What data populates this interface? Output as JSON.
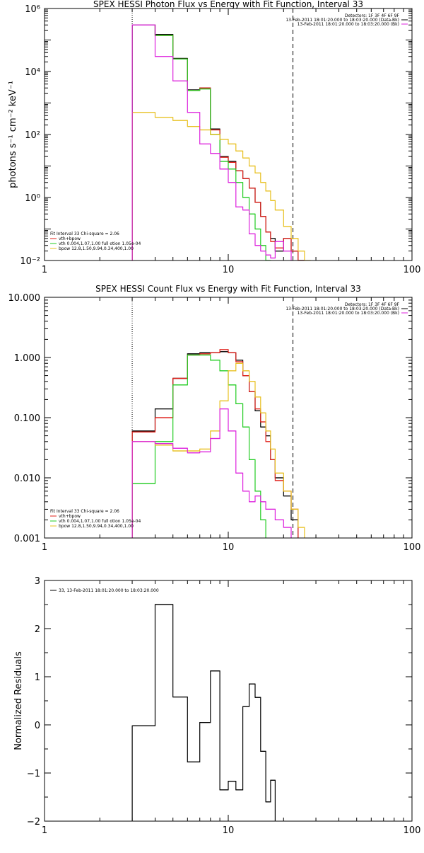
{
  "colors": {
    "total": "#000000",
    "model": "#e0201a",
    "vth": "#22cc22",
    "bpow": "#e8c020",
    "bk": "#dd22dd"
  },
  "chart_data": [
    {
      "type": "line",
      "title": "SPEX HESSI Photon Flux vs Energy with Fit Function, Interval 33",
      "ylabel": "photons s⁻¹ cm⁻² keV⁻¹",
      "xlabel": "",
      "x_scale": "log",
      "y_scale": "log",
      "xlim": [
        1,
        100
      ],
      "ylim": [
        0.01,
        1000000
      ],
      "xticks": [
        "1",
        "10",
        "100"
      ],
      "yticks": [
        {
          "value": 1000000,
          "label": "10⁶"
        },
        {
          "value": 10000,
          "label": "10⁴"
        },
        {
          "value": 100,
          "label": "10²"
        },
        {
          "value": 1,
          "label": "10⁰"
        },
        {
          "value": 0.01,
          "label": "10⁻²"
        }
      ],
      "vlines": [
        {
          "x": 3,
          "style": "dotted"
        },
        {
          "x": 22.5,
          "style": "dashed"
        }
      ],
      "info_lines": [
        "Detectors: 1F 3F 4F 6F 9F",
        "13-Feb-2011 18:01:20.000 to 18:03:20.000 (Data-Bk)",
        "13-Feb-2011 18:01:20.000 to 18:03:20.000 (Bk)"
      ],
      "legend_lines": [
        "Fit Interval 33   Chi-square = 2.06",
        "vth+bpow",
        "vth 0.004,1.07,1.00  full otion 1.05e-04",
        "bpow 12.8,1.50,9.94,0.34,400,1.00"
      ],
      "edges": [
        3,
        4,
        5,
        6,
        7,
        8,
        9,
        10,
        11,
        12,
        13,
        14,
        15,
        16,
        17,
        18,
        20,
        22,
        24,
        26,
        28,
        30
      ],
      "series": [
        {
          "name": "total",
          "color_key": "total",
          "values": [
            300000,
            150000,
            26000,
            2600,
            3000,
            150,
            20,
            14,
            7,
            4,
            2,
            0.7,
            0.25,
            0.08,
            0.05,
            0.02,
            0.05,
            0.02,
            0.01,
            null,
            null
          ]
        },
        {
          "name": "vth+bpow",
          "color_key": "model",
          "values": [
            300000,
            140000,
            25000,
            2500,
            3000,
            140,
            19,
            13,
            7,
            4,
            2,
            0.7,
            0.25,
            0.08,
            0.04,
            0.025,
            0.05,
            0.02,
            0.01,
            null,
            null
          ]
        },
        {
          "name": "vth",
          "color_key": "vth",
          "values": [
            300000,
            140000,
            25000,
            2500,
            2800,
            100,
            14,
            8,
            3,
            1,
            0.3,
            0.1,
            0.03,
            0.01,
            null,
            null,
            null,
            null,
            null,
            null,
            null
          ]
        },
        {
          "name": "bpow",
          "color_key": "bpow",
          "values": [
            500,
            350,
            280,
            180,
            140,
            100,
            70,
            50,
            30,
            18,
            10,
            6,
            3,
            1.6,
            0.8,
            0.4,
            0.12,
            0.05,
            0.02,
            0.01,
            null
          ]
        },
        {
          "name": "bk",
          "color_key": "bk",
          "values": [
            300000,
            30000,
            5000,
            500,
            50,
            25,
            8,
            3,
            0.5,
            0.4,
            0.07,
            0.03,
            0.02,
            0.015,
            0.012,
            0.04,
            0.02,
            null,
            null,
            null,
            null
          ]
        }
      ]
    },
    {
      "type": "line",
      "title": "SPEX HESSI Count Flux vs Energy with Fit Function, Interval 33",
      "ylabel": "",
      "xlabel": "",
      "x_scale": "log",
      "y_scale": "log",
      "xlim": [
        1,
        100
      ],
      "ylim": [
        0.001,
        10
      ],
      "xticks": [
        "1",
        "10",
        "100"
      ],
      "yticks": [
        {
          "value": 10,
          "label": "10.000"
        },
        {
          "value": 1,
          "label": "1.000"
        },
        {
          "value": 0.1,
          "label": "0.100"
        },
        {
          "value": 0.01,
          "label": "0.010"
        },
        {
          "value": 0.001,
          "label": "0.001"
        }
      ],
      "vlines": [
        {
          "x": 3,
          "style": "dotted"
        },
        {
          "x": 22.5,
          "style": "dashed"
        }
      ],
      "info_lines": [
        "Detectors: 1F 3F 4F 6F 9F",
        "13-Feb-2011 18:01:20.000 to 18:03:20.000 (Data-Bk)",
        "13-Feb-2011 18:01:20.000 to 18:03:20.000 (Bk)"
      ],
      "legend_lines": [
        "Fit Interval 33   Chi-square = 2.06",
        "vth+bpow",
        "vth 0.004,1.07,1.00  full otion 1.05e-04",
        "bpow 12.8,1.50,9.94,0.34,400,1.00"
      ],
      "edges": [
        3,
        4,
        5,
        6,
        7,
        8,
        9,
        10,
        11,
        12,
        13,
        14,
        15,
        16,
        17,
        18,
        20,
        22,
        24,
        26,
        28,
        30
      ],
      "series": [
        {
          "name": "total",
          "color_key": "total",
          "values": [
            0.06,
            0.14,
            0.45,
            1.15,
            1.2,
            1.2,
            1.25,
            1.2,
            0.9,
            0.5,
            0.27,
            0.13,
            0.07,
            0.05,
            0.02,
            0.01,
            0.005,
            0.002,
            null,
            null,
            null
          ]
        },
        {
          "name": "vth+bpow",
          "color_key": "model",
          "values": [
            0.058,
            0.1,
            0.45,
            1.1,
            1.15,
            1.2,
            1.35,
            1.2,
            0.85,
            0.5,
            0.27,
            0.14,
            0.085,
            0.04,
            0.02,
            0.009,
            0.006,
            0.003,
            null,
            null,
            null
          ]
        },
        {
          "name": "vth",
          "color_key": "vth",
          "values": [
            0.008,
            0.04,
            0.35,
            1.1,
            1.1,
            0.9,
            0.6,
            0.35,
            0.17,
            0.07,
            0.02,
            0.006,
            0.002,
            null,
            null,
            null,
            null,
            null,
            null,
            null,
            null
          ]
        },
        {
          "name": "bpow",
          "color_key": "bpow",
          "values": [
            0.04,
            0.035,
            0.028,
            0.028,
            0.03,
            0.06,
            0.19,
            0.6,
            0.8,
            0.6,
            0.4,
            0.22,
            0.12,
            0.06,
            0.03,
            0.012,
            0.006,
            0.003,
            0.0015,
            null,
            null
          ]
        },
        {
          "name": "bk",
          "color_key": "bk",
          "values": [
            0.04,
            0.037,
            0.031,
            0.026,
            0.027,
            0.045,
            0.14,
            0.06,
            0.012,
            0.006,
            0.004,
            0.005,
            0.004,
            0.003,
            0.003,
            0.002,
            0.0015,
            null,
            null,
            null,
            null
          ]
        }
      ]
    },
    {
      "type": "line",
      "title": "",
      "ylabel": "Normalized Residuals",
      "xlabel": "",
      "x_scale": "log",
      "y_scale": "linear",
      "xlim": [
        1,
        100
      ],
      "ylim": [
        -2,
        3
      ],
      "xticks": [
        "1",
        "10",
        "100"
      ],
      "yticks": [
        {
          "value": 3,
          "label": "3"
        },
        {
          "value": 2,
          "label": "2"
        },
        {
          "value": 1,
          "label": "1"
        },
        {
          "value": 0,
          "label": "0"
        },
        {
          "value": -1,
          "label": "−1"
        },
        {
          "value": -2,
          "label": "−2"
        }
      ],
      "legend_lines": [
        "33, 13-Feb-2011 18:01:20.000 to 18:03:20.000"
      ],
      "edges": [
        3,
        4,
        5,
        6,
        7,
        8,
        9,
        10,
        11,
        12,
        13,
        14,
        15,
        16,
        17,
        18,
        20,
        22
      ],
      "series": [
        {
          "name": "residuals",
          "color_key": "total",
          "values": [
            -0.02,
            2.5,
            0.58,
            -0.77,
            0.05,
            1.12,
            -1.35,
            -1.17,
            -1.35,
            0.38,
            0.85,
            0.57,
            -0.55,
            -1.6,
            -1.15,
            -2.1,
            null
          ]
        }
      ]
    }
  ]
}
